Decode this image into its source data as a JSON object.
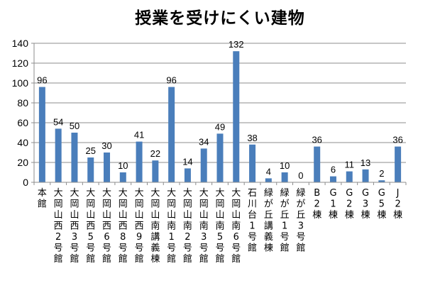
{
  "chart_data": {
    "type": "bar",
    "title": "授業を受けにくい建物",
    "xlabel": "",
    "ylabel": "",
    "ylim": [
      0,
      140
    ],
    "yticks": [
      0,
      20,
      40,
      60,
      80,
      100,
      120,
      140
    ],
    "grid": true,
    "legend": "none",
    "bar_color": "#4a7ebb",
    "categories": [
      "本館",
      "大岡山西2号館",
      "大岡山西3号館",
      "大岡山西5号館",
      "大岡山西6号館",
      "大岡山西8号館",
      "大岡山西9号館",
      "大岡山南講義棟",
      "大岡山南1号館",
      "大岡山南2号館",
      "大岡山南3号館",
      "大岡山南5号館",
      "大岡山南6号館",
      "石川台1号館",
      "緑が丘講義棟",
      "緑が丘1号館",
      "緑が丘3号館",
      "B2棟",
      "G1棟",
      "G2棟",
      "G3棟",
      "G5棟",
      "J2棟"
    ],
    "values": [
      96,
      54,
      50,
      25,
      30,
      10,
      41,
      22,
      96,
      14,
      34,
      49,
      132,
      38,
      4,
      10,
      0,
      36,
      6,
      11,
      13,
      2,
      36
    ]
  }
}
